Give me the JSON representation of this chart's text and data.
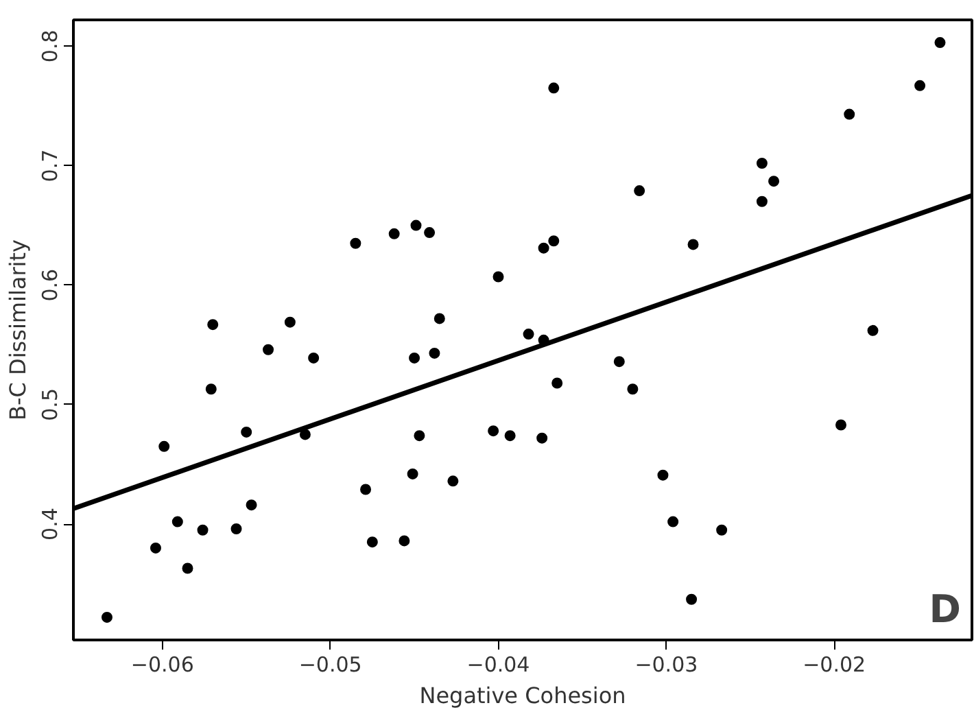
{
  "chart_data": {
    "type": "scatter",
    "xlabel": "Negative Cohesion",
    "ylabel": "B-C Dissimilarity",
    "annotations": [
      "D"
    ],
    "xlim": [
      -0.0653,
      -0.0118
    ],
    "ylim": [
      0.303,
      0.822
    ],
    "xticks": [
      -0.06,
      -0.05,
      -0.04,
      -0.03,
      -0.02
    ],
    "yticks": [
      0.4,
      0.5,
      0.6,
      0.7,
      0.8
    ],
    "grid": false,
    "series": [
      {
        "marker": "circle",
        "color": "#000000",
        "x": [
          -0.0633,
          -0.0604,
          -0.0599,
          -0.0591,
          -0.0585,
          -0.0576,
          -0.0571,
          -0.057,
          -0.0556,
          -0.055,
          -0.0547,
          -0.0537,
          -0.0524,
          -0.0515,
          -0.051,
          -0.0485,
          -0.0479,
          -0.0475,
          -0.0462,
          -0.0456,
          -0.0451,
          -0.045,
          -0.0449,
          -0.0447,
          -0.0441,
          -0.0438,
          -0.0435,
          -0.0427,
          -0.0403,
          -0.04,
          -0.0393,
          -0.0374,
          -0.0382,
          -0.0373,
          -0.0373,
          -0.0367,
          -0.0367,
          -0.0365,
          -0.0328,
          -0.032,
          -0.0316,
          -0.0302,
          -0.0296,
          -0.0285,
          -0.0284,
          -0.0267,
          -0.0243,
          -0.0236,
          -0.0243,
          -0.0196,
          -0.0191,
          -0.0177,
          -0.0149,
          -0.0137
        ],
        "values": [
          0.322,
          0.38,
          0.465,
          0.402,
          0.363,
          0.395,
          0.513,
          0.567,
          0.396,
          0.477,
          0.416,
          0.546,
          0.569,
          0.475,
          0.539,
          0.635,
          0.429,
          0.385,
          0.643,
          0.386,
          0.442,
          0.539,
          0.65,
          0.474,
          0.644,
          0.543,
          0.572,
          0.436,
          0.478,
          0.607,
          0.474,
          0.472,
          0.559,
          0.554,
          0.631,
          0.637,
          0.765,
          0.518,
          0.536,
          0.513,
          0.679,
          0.441,
          0.402,
          0.337,
          0.634,
          0.395,
          0.702,
          0.687,
          0.67,
          0.483,
          0.743,
          0.562,
          0.767,
          0.803
        ]
      },
      {
        "type": "line",
        "color": "#000000",
        "x": [
          -0.0653,
          -0.0118
        ],
        "values": [
          0.413,
          0.675
        ]
      }
    ]
  }
}
